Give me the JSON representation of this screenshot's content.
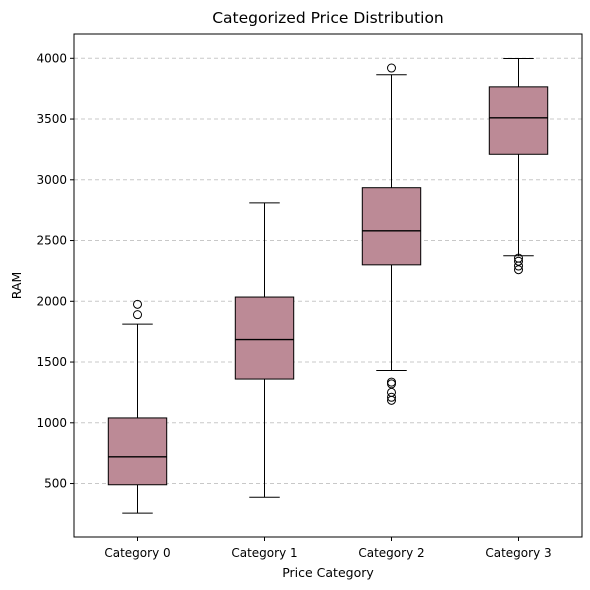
{
  "chart_data": {
    "type": "box",
    "title": "Categorized Price Distribution",
    "xlabel": "Price Category",
    "ylabel": "RAM",
    "categories": [
      "Category 0",
      "Category 1",
      "Category 2",
      "Category 3"
    ],
    "ylim": [
      60,
      4200
    ],
    "yticks": [
      500,
      1000,
      1500,
      2000,
      2500,
      3000,
      3500,
      4000
    ],
    "grid": "y-dashed",
    "box_color": "#bc8a96",
    "edge_color": "#000000",
    "grid_color": "#c8c8c8",
    "boxes": [
      {
        "category": "Category 0",
        "whisker_low": 256,
        "q1": 490,
        "median": 720,
        "q3": 1040,
        "whisker_high": 1812,
        "outliers": [
          1890,
          1975
        ]
      },
      {
        "category": "Category 1",
        "whisker_low": 387,
        "q1": 1360,
        "median": 1685,
        "q3": 2035,
        "whisker_high": 2810,
        "outliers": []
      },
      {
        "category": "Category 2",
        "whisker_low": 1430,
        "q1": 2300,
        "median": 2580,
        "q3": 2935,
        "whisker_high": 3865,
        "outliers": [
          1185,
          1210,
          1250,
          1320,
          1335,
          3920
        ]
      },
      {
        "category": "Category 3",
        "whisker_low": 2375,
        "q1": 3210,
        "median": 3510,
        "q3": 3765,
        "whisker_high": 3998,
        "outliers": [
          2260,
          2290,
          2330,
          2355
        ]
      }
    ]
  }
}
